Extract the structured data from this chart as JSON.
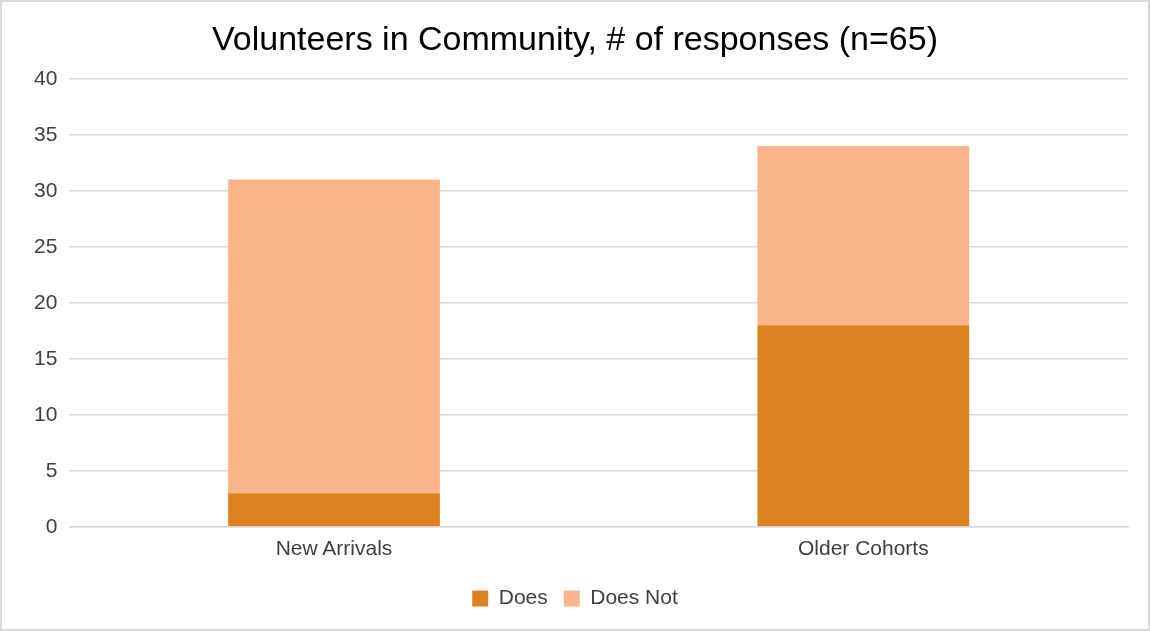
{
  "chart_data": {
    "type": "bar",
    "title": "Volunteers in Community, # of responses (n=65)",
    "categories": [
      "New Arrivals",
      "Older Cohorts"
    ],
    "stacked": true,
    "series": [
      {
        "name": "Does",
        "color": "#dd8220",
        "values": [
          3,
          18
        ]
      },
      {
        "name": "Does Not",
        "color": "#f9b48a",
        "values": [
          28,
          16
        ]
      }
    ],
    "ylim": [
      0,
      40
    ],
    "yticks": [
      0,
      5,
      10,
      15,
      20,
      25,
      30,
      35,
      40
    ],
    "grid": "y",
    "legend": "bottom"
  }
}
